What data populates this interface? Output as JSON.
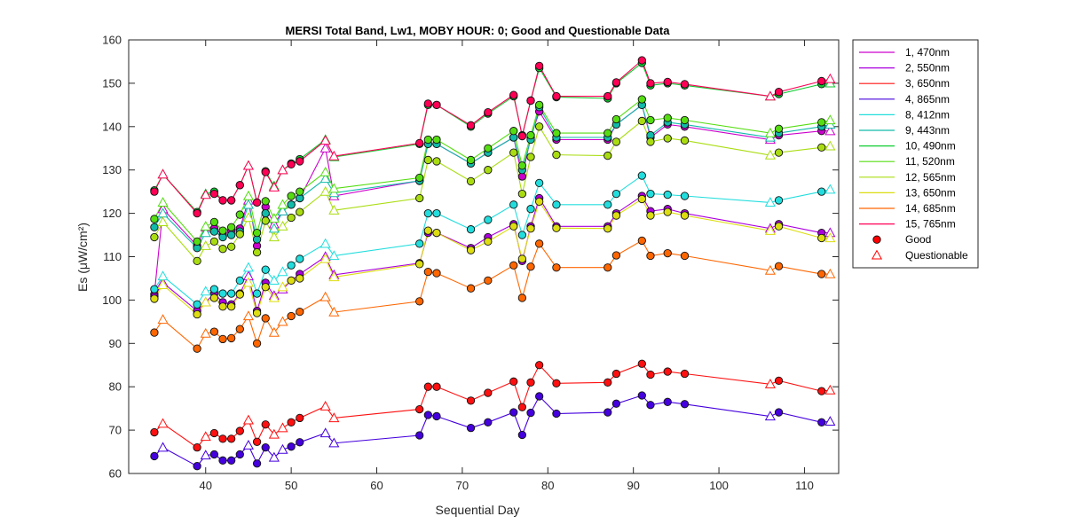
{
  "chart_data": {
    "type": "line",
    "title": "MERSI Total Band,  Lw1, MOBY HOUR: 0;  Good and Questionable Data",
    "xlabel": "Sequential Day",
    "ylabel": "Es (μW/cm²)",
    "xlim": [
      31,
      114
    ],
    "ylim": [
      60,
      160
    ],
    "xticks": [
      40,
      50,
      60,
      70,
      80,
      90,
      100,
      110
    ],
    "yticks": [
      60,
      70,
      80,
      90,
      100,
      110,
      120,
      130,
      140,
      150,
      160
    ],
    "grid": false,
    "legend_position": "outside-right",
    "x": [
      34,
      35,
      39,
      40,
      41,
      42,
      43,
      44,
      45,
      46,
      47,
      48,
      49,
      50,
      51,
      54,
      55,
      65,
      66,
      67,
      71,
      73,
      76,
      77,
      78,
      79,
      81,
      87,
      88,
      91,
      92,
      94,
      96,
      106,
      107,
      112,
      113
    ],
    "questionable_x": [
      35,
      40,
      45,
      48,
      49,
      54,
      55,
      106,
      113
    ],
    "series": [
      {
        "name": "1, 470nm",
        "color": "#cc00cc",
        "values": [
          101.3,
          121.0,
          112.5,
          116.8,
          116.5,
          115.0,
          116.0,
          116.5,
          123.0,
          112.5,
          121.5,
          117.5,
          120.5,
          122.0,
          123.5,
          135.0,
          124.0,
          127.5,
          136.0,
          136.0,
          131.5,
          134.0,
          137.5,
          128.5,
          137.5,
          143.5,
          137.0,
          137.0,
          140.5,
          145.0,
          137.5,
          140.5,
          140.0,
          137.0,
          138.0,
          139.0,
          139.0
        ]
      },
      {
        "name": "2, 550nm",
        "color": "#aa00dd",
        "values": [
          100.8,
          104.0,
          97.5,
          99.5,
          101.5,
          99.5,
          99.0,
          101.5,
          105.5,
          97.5,
          104.0,
          101.0,
          102.5,
          104.5,
          106.0,
          110.0,
          105.8,
          108.5,
          115.5,
          115.5,
          112.0,
          114.5,
          117.5,
          109.0,
          117.0,
          123.5,
          117.0,
          117.0,
          120.0,
          124.0,
          120.5,
          121.0,
          120.0,
          116.5,
          117.5,
          115.5,
          115.5
        ]
      },
      {
        "name": "3, 650nm",
        "color": "#ff1010",
        "values": [
          69.5,
          71.5,
          66.0,
          68.5,
          69.3,
          68.0,
          68.0,
          69.8,
          72.3,
          67.3,
          71.3,
          69.0,
          70.5,
          71.8,
          72.8,
          75.5,
          72.8,
          74.8,
          80.0,
          80.0,
          76.8,
          78.6,
          81.2,
          75.3,
          81.0,
          85.0,
          80.8,
          81.0,
          83.0,
          85.3,
          82.8,
          83.5,
          83.0,
          80.6,
          81.4,
          79.0,
          79.2
        ]
      },
      {
        "name": "4, 865nm",
        "color": "#4400dd",
        "values": [
          64.0,
          66.0,
          61.7,
          64.2,
          64.4,
          63.0,
          63.0,
          64.4,
          66.5,
          62.3,
          66.0,
          63.7,
          65.5,
          66.2,
          67.2,
          69.3,
          67.0,
          68.8,
          73.5,
          73.2,
          70.5,
          71.8,
          74.1,
          68.9,
          74.0,
          77.8,
          73.8,
          74.1,
          76.1,
          78.0,
          75.8,
          76.5,
          76.0,
          73.2,
          74.1,
          71.8,
          72.0
        ]
      },
      {
        "name": "8, 412nm",
        "color": "#22dddd",
        "values": [
          102.5,
          105.5,
          99.0,
          102.0,
          102.5,
          101.5,
          101.5,
          104.5,
          107.5,
          101.5,
          107.0,
          104.5,
          106.5,
          108.0,
          109.5,
          113.0,
          110.2,
          113.0,
          120.0,
          120.0,
          116.3,
          118.5,
          122.0,
          115.0,
          121.0,
          127.0,
          122.0,
          122.0,
          124.5,
          128.7,
          124.5,
          124.3,
          124.0,
          122.5,
          123.0,
          125.0,
          125.5
        ]
      },
      {
        "name": "9, 443nm",
        "color": "#11bbaa",
        "values": [
          116.8,
          120.0,
          112.0,
          115.5,
          115.8,
          114.5,
          115.0,
          115.8,
          122.0,
          114.0,
          120.0,
          116.5,
          120.5,
          122.0,
          123.5,
          128.0,
          124.7,
          127.5,
          136.0,
          136.0,
          131.5,
          134.0,
          137.5,
          130.0,
          137.0,
          144.5,
          137.5,
          137.5,
          140.5,
          145.0,
          138.0,
          141.0,
          140.5,
          137.5,
          138.5,
          140.0,
          140.5
        ]
      },
      {
        "name": "10, 490nm",
        "color": "#11cc33",
        "values": [
          125.3,
          129.0,
          120.3,
          124.5,
          125.0,
          123.0,
          123.0,
          126.5,
          131.0,
          122.5,
          129.7,
          126.3,
          130.0,
          131.5,
          132.5,
          137.0,
          133.0,
          136.0,
          145.0,
          145.0,
          140.0,
          143.0,
          147.0,
          138.0,
          146.0,
          153.5,
          146.8,
          146.5,
          150.0,
          154.7,
          149.5,
          150.0,
          149.5,
          147.0,
          147.5,
          149.8,
          150.0
        ]
      },
      {
        "name": "11, 520nm",
        "color": "#55dd11",
        "values": [
          118.7,
          122.5,
          113.5,
          117.0,
          118.0,
          116.0,
          116.8,
          119.7,
          124.0,
          115.5,
          122.8,
          118.8,
          122.0,
          124.0,
          125.0,
          129.5,
          125.7,
          128.2,
          137.0,
          137.0,
          132.3,
          135.0,
          139.0,
          131.0,
          138.0,
          145.0,
          138.5,
          138.5,
          141.7,
          146.3,
          141.5,
          142.0,
          141.5,
          138.5,
          139.5,
          141.0,
          141.5
        ]
      },
      {
        "name": "12, 565nm",
        "color": "#aadd11",
        "values": [
          114.5,
          118.0,
          109.0,
          112.5,
          113.5,
          111.8,
          112.3,
          115.2,
          119.0,
          111.0,
          118.3,
          114.5,
          117.0,
          119.0,
          120.3,
          125.0,
          120.7,
          123.5,
          132.3,
          132.0,
          127.4,
          130.0,
          134.0,
          124.5,
          133.0,
          140.0,
          133.5,
          133.3,
          136.5,
          141.3,
          136.5,
          137.3,
          136.8,
          133.4,
          134.0,
          135.2,
          135.5
        ]
      },
      {
        "name": "13, 650nm",
        "color": "#dddd11",
        "values": [
          100.3,
          103.5,
          96.7,
          99.5,
          100.5,
          98.5,
          98.5,
          101.3,
          104.0,
          97.0,
          103.0,
          100.5,
          103.0,
          104.5,
          105.0,
          109.5,
          105.3,
          108.3,
          116.0,
          115.5,
          111.5,
          113.5,
          117.0,
          109.5,
          116.5,
          122.7,
          116.6,
          116.5,
          119.5,
          123.3,
          119.5,
          120.3,
          119.5,
          116.0,
          117.0,
          114.3,
          114.3
        ]
      },
      {
        "name": "14, 685nm",
        "color": "#ff6600",
        "values": [
          92.5,
          95.5,
          88.8,
          92.3,
          92.7,
          91.0,
          91.2,
          93.3,
          96.3,
          90.0,
          95.8,
          92.5,
          95.0,
          96.3,
          97.3,
          100.7,
          97.2,
          99.7,
          106.5,
          106.2,
          102.7,
          104.5,
          108.0,
          100.5,
          107.7,
          113.0,
          107.5,
          107.5,
          110.3,
          113.7,
          110.2,
          110.8,
          110.2,
          106.8,
          107.8,
          106.0,
          106.0
        ]
      },
      {
        "name": "15, 765nm",
        "color": "#ff0055",
        "values": [
          125.0,
          129.0,
          120.0,
          124.3,
          124.5,
          123.0,
          123.0,
          126.5,
          131.0,
          122.5,
          129.5,
          126.0,
          130.0,
          131.3,
          132.0,
          136.8,
          133.2,
          136.2,
          145.3,
          145.0,
          140.3,
          143.3,
          147.3,
          137.8,
          146.0,
          154.0,
          147.0,
          147.0,
          150.2,
          155.3,
          150.0,
          150.3,
          149.8,
          147.0,
          148.0,
          150.5,
          151.0
        ]
      }
    ],
    "legend_markers": [
      {
        "label": "Good",
        "color": "#ff0000"
      },
      {
        "label": "Questionable",
        "color": "#ff0000"
      }
    ]
  }
}
